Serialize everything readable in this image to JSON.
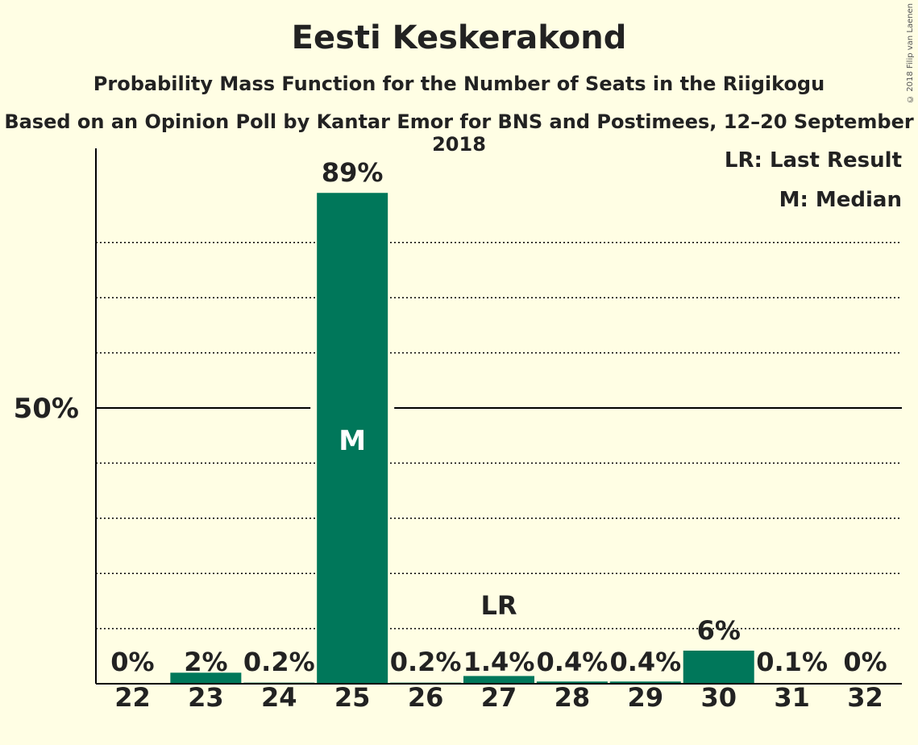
{
  "title": "Eesti Keskerakond",
  "subtitle": "Probability Mass Function for the Number of Seats in the Riigikogu",
  "source": "Based on an Opinion Poll by Kantar Emor for BNS and Postimees, 12–20 September 2018",
  "legend": {
    "last_result": "LR: Last Result",
    "median": "M: Median"
  },
  "copyright": "© 2018 Filip van Laenen",
  "colors": {
    "bar": "#00775A",
    "background": "#FFFEE4"
  },
  "chart_data": {
    "type": "bar",
    "categories": [
      "22",
      "23",
      "24",
      "25",
      "26",
      "27",
      "28",
      "29",
      "30",
      "31",
      "32"
    ],
    "values": [
      0,
      2,
      0.2,
      89,
      0.2,
      1.4,
      0.4,
      0.4,
      6,
      0.1,
      0
    ],
    "value_labels": [
      "0%",
      "2%",
      "0.2%",
      "89%",
      "0.2%",
      "1.4%",
      "0.4%",
      "0.4%",
      "6%",
      "0.1%",
      "0%"
    ],
    "ylim": [
      0,
      97
    ],
    "y_tick_label": "50%",
    "y_tick_value": 50,
    "dotted_gridlines": [
      10,
      20,
      30,
      40,
      60,
      70,
      80
    ],
    "median_category": "25",
    "median_marker": "M",
    "last_result_category": "27",
    "last_result_marker": "LR"
  }
}
